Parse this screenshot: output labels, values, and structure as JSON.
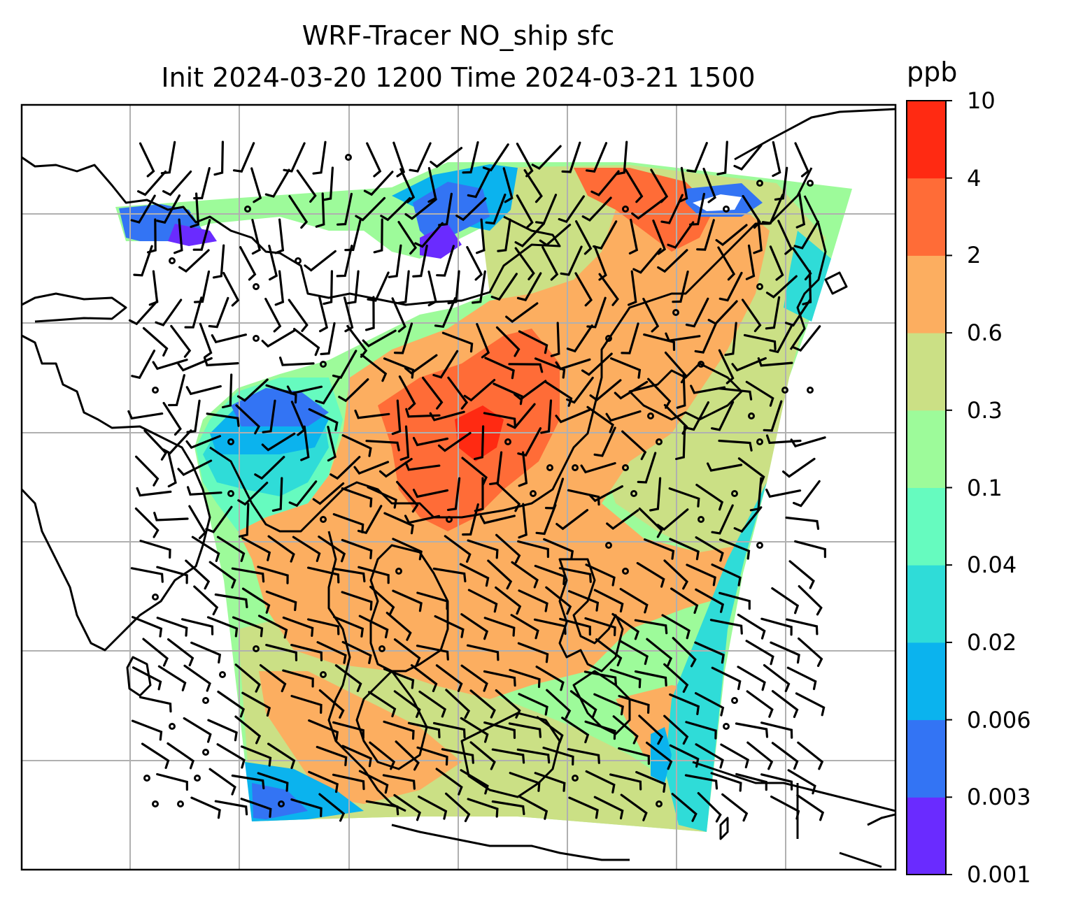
{
  "title": {
    "line1": "WRF-Tracer NO_ship sfc",
    "line2": "Init 2024-03-20 1200 Time 2024-03-21 1500"
  },
  "colorbar": {
    "unit": "ppb",
    "levels": [
      "0.001",
      "0.003",
      "0.006",
      "0.02",
      "0.04",
      "0.1",
      "0.3",
      "0.6",
      "2",
      "4",
      "10"
    ],
    "colors": [
      "#6a2bff",
      "#3374f4",
      "#0bb3ee",
      "#2fdcd8",
      "#66fbbf",
      "#9dfb9a",
      "#cbe085",
      "#fcae60",
      "#ff6c37",
      "#ff2a12"
    ]
  },
  "map": {
    "field": "NO_ship surface concentration",
    "wind_barbs": true,
    "graticule": true,
    "coastlines": true
  }
}
